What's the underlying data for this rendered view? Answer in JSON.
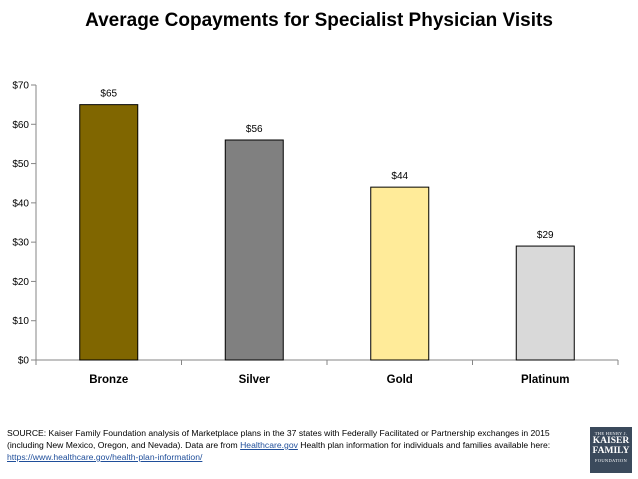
{
  "chart_data": {
    "type": "bar",
    "title": "Average Copayments for Specialist Physician Visits",
    "categories": [
      "Bronze",
      "Silver",
      "Gold",
      "Platinum"
    ],
    "values": [
      65,
      56,
      44,
      29
    ],
    "data_labels": [
      "$65",
      "$56",
      "$44",
      "$29"
    ],
    "ylim": [
      0,
      70
    ],
    "yticks": [
      0,
      10,
      20,
      30,
      40,
      50,
      60,
      70
    ],
    "ytick_labels": [
      "$0",
      "$10",
      "$20",
      "$30",
      "$40",
      "$50",
      "$60",
      "$70"
    ],
    "colors": [
      "#806600",
      "#808080",
      "#ffeb99",
      "#d9d9d9"
    ],
    "grid": false,
    "legend": "none"
  },
  "source": {
    "text_before_link": "SOURCE: Kaiser Family Foundation analysis of Marketplace plans in the 37 states with Federally Facilitated or Partnership exchanges in 2015 (including New Mexico, Oregon, and Nevada). Data are from ",
    "link_text": "Healthcare.gov",
    "text_after_link": " Health plan information for individuals and families available here: ",
    "url_text": "https://www.healthcare.gov/health-plan-information/"
  },
  "logo": {
    "line1": "THE HENRY J.",
    "line2a": "KAISER",
    "line2b": "FAMILY",
    "line3": "FOUNDATION"
  }
}
